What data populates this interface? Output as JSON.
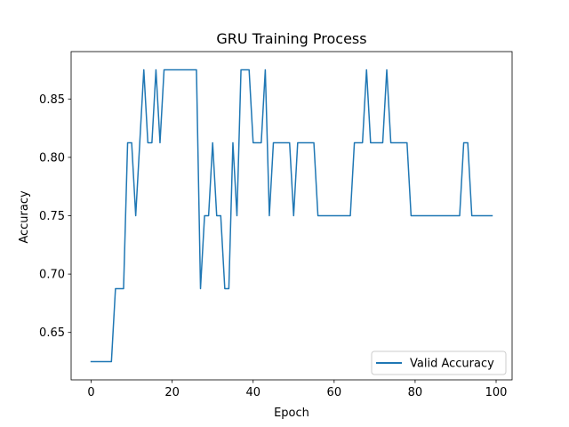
{
  "chart_data": {
    "type": "line",
    "title": "GRU Training Process",
    "xlabel": "Epoch",
    "ylabel": "Accuracy",
    "xlim": [
      -4.95,
      103.95
    ],
    "ylim": [
      0.6094,
      0.8906
    ],
    "xticks": [
      0,
      20,
      40,
      60,
      80,
      100
    ],
    "xtick_labels": [
      "0",
      "20",
      "40",
      "60",
      "80",
      "100"
    ],
    "yticks": [
      0.65,
      0.7,
      0.75,
      0.8,
      0.85
    ],
    "ytick_labels": [
      "0.65",
      "0.70",
      "0.75",
      "0.80",
      "0.85"
    ],
    "grid": false,
    "legend_position": "lower right",
    "series": [
      {
        "name": "Valid Accuracy",
        "color": "#1f77b4",
        "x": [
          0,
          1,
          2,
          3,
          4,
          5,
          6,
          7,
          8,
          9,
          10,
          11,
          12,
          13,
          14,
          15,
          16,
          17,
          18,
          19,
          20,
          21,
          22,
          23,
          24,
          25,
          26,
          27,
          28,
          29,
          30,
          31,
          32,
          33,
          34,
          35,
          36,
          37,
          38,
          39,
          40,
          41,
          42,
          43,
          44,
          45,
          46,
          47,
          48,
          49,
          50,
          51,
          52,
          53,
          54,
          55,
          56,
          57,
          58,
          59,
          60,
          61,
          62,
          63,
          64,
          65,
          66,
          67,
          68,
          69,
          70,
          71,
          72,
          73,
          74,
          75,
          76,
          77,
          78,
          79,
          80,
          81,
          82,
          83,
          84,
          85,
          86,
          87,
          88,
          89,
          90,
          91,
          92,
          93,
          94,
          95,
          96,
          97,
          98,
          99
        ],
        "values": [
          0.625,
          0.625,
          0.625,
          0.625,
          0.625,
          0.625,
          0.6875,
          0.6875,
          0.6875,
          0.8125,
          0.8125,
          0.75,
          0.8125,
          0.875,
          0.8125,
          0.8125,
          0.875,
          0.8125,
          0.875,
          0.875,
          0.875,
          0.875,
          0.875,
          0.875,
          0.875,
          0.875,
          0.875,
          0.6875,
          0.75,
          0.75,
          0.8125,
          0.75,
          0.75,
          0.6875,
          0.6875,
          0.8125,
          0.75,
          0.875,
          0.875,
          0.875,
          0.8125,
          0.8125,
          0.8125,
          0.875,
          0.75,
          0.8125,
          0.8125,
          0.8125,
          0.8125,
          0.8125,
          0.75,
          0.8125,
          0.8125,
          0.8125,
          0.8125,
          0.8125,
          0.75,
          0.75,
          0.75,
          0.75,
          0.75,
          0.75,
          0.75,
          0.75,
          0.75,
          0.8125,
          0.8125,
          0.8125,
          0.875,
          0.8125,
          0.8125,
          0.8125,
          0.8125,
          0.875,
          0.8125,
          0.8125,
          0.8125,
          0.8125,
          0.8125,
          0.75,
          0.75,
          0.75,
          0.75,
          0.75,
          0.75,
          0.75,
          0.75,
          0.75,
          0.75,
          0.75,
          0.75,
          0.75,
          0.8125,
          0.8125,
          0.75,
          0.75,
          0.75,
          0.75,
          0.75,
          0.75
        ]
      }
    ]
  }
}
